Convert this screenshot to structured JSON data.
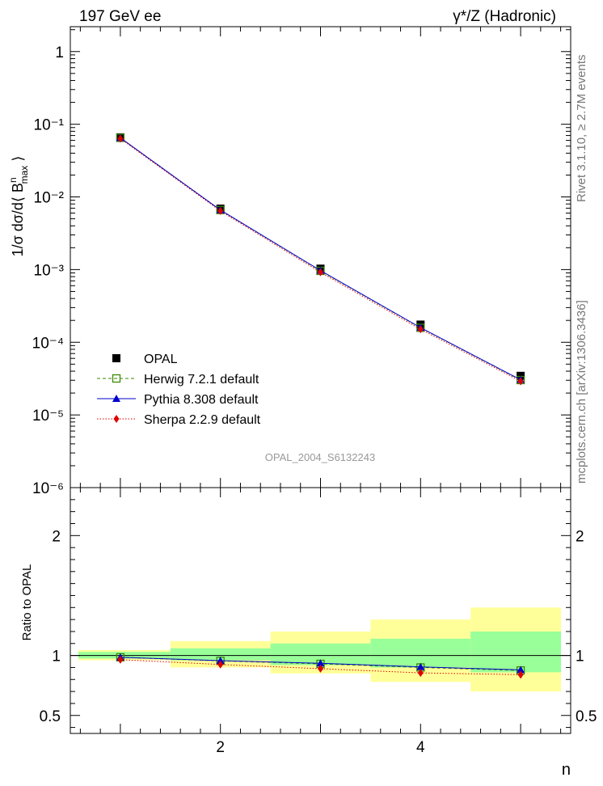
{
  "header": {
    "left_label": "197 GeV ee",
    "right_label": "γ*/Z (Hadronic)"
  },
  "side_labels": {
    "rivet": "Rivet 3.1.10, ≥ 2.7M events",
    "mcplots": "mcplots.cern.ch [arXiv:1306.3436]"
  },
  "analysis_tag": "OPAL_2004_S6132243",
  "chart_data": [
    {
      "type": "scatter",
      "role": "main",
      "ylabel": "1/σ dσ/d⟨ B^n_max ⟩",
      "yscale": "log",
      "ylim": [
        1e-06,
        2.2
      ],
      "xlim": [
        0.5,
        5.5
      ],
      "y_ticks": [
        {
          "value": 1,
          "label": "1"
        },
        {
          "value": 0.1,
          "label": "10⁻¹"
        },
        {
          "value": 0.01,
          "label": "10⁻²"
        },
        {
          "value": 0.001,
          "label": "10⁻³"
        },
        {
          "value": 0.0001,
          "label": "10⁻⁴"
        },
        {
          "value": 1e-05,
          "label": "10⁻⁵"
        },
        {
          "value": 1e-06,
          "label": "10⁻⁶"
        }
      ],
      "x": [
        1,
        2,
        3,
        4,
        5
      ],
      "series": [
        {
          "name": "OPAL",
          "marker": "square",
          "color": "#000000",
          "values": [
            0.066,
            0.0069,
            0.00103,
            0.000175,
            3.45e-05
          ]
        },
        {
          "name": "Herwig 7.2.1 default",
          "marker": "open-square",
          "line": "dashed",
          "color": "#3a8a00",
          "values": [
            0.065,
            0.0066,
            0.00096,
            0.000158,
            3.02e-05
          ]
        },
        {
          "name": "Pythia 8.308 default",
          "marker": "triangle",
          "line": "solid",
          "color": "#0000cc",
          "values": [
            0.065,
            0.0066,
            0.00097,
            0.000159,
            3.05e-05
          ]
        },
        {
          "name": "Sherpa 2.2.9 default",
          "marker": "diamond",
          "line": "dotted",
          "color": "#dd0000",
          "values": [
            0.0635,
            0.0064,
            0.00092,
            0.000151,
            2.91e-05
          ]
        }
      ],
      "legend_position": "bottom-left"
    },
    {
      "type": "scatter",
      "role": "ratio",
      "xlabel": "n",
      "ylabel": "Ratio to OPAL",
      "ylim": [
        0.35,
        2.4
      ],
      "xlim": [
        0.5,
        5.5
      ],
      "y_ticks": [
        {
          "value": 0.5,
          "label": "0.5"
        },
        {
          "value": 1,
          "label": "1"
        },
        {
          "value": 2,
          "label": "2"
        }
      ],
      "x_ticks": [
        {
          "value": 2,
          "label": "2"
        },
        {
          "value": 4,
          "label": "4"
        }
      ],
      "bands": [
        {
          "xlow": 0.5,
          "xhigh": 1.5,
          "green": [
            0.975,
            1.03
          ],
          "yellow": [
            0.96,
            1.045
          ]
        },
        {
          "xlow": 1.5,
          "xhigh": 2.5,
          "green": [
            0.96,
            1.06
          ],
          "yellow": [
            0.9,
            1.12
          ]
        },
        {
          "xlow": 2.5,
          "xhigh": 3.5,
          "green": [
            0.92,
            1.1
          ],
          "yellow": [
            0.85,
            1.2
          ]
        },
        {
          "xlow": 3.5,
          "xhigh": 4.5,
          "green": [
            0.9,
            1.14
          ],
          "yellow": [
            0.78,
            1.3
          ]
        },
        {
          "xlow": 4.5,
          "xhigh": 5.5,
          "green": [
            0.86,
            1.2
          ],
          "yellow": [
            0.7,
            1.4
          ]
        }
      ],
      "series": [
        {
          "name": "Herwig 7.2.1 default",
          "marker": "open-square",
          "line": "dashed",
          "color": "#3a8a00",
          "values": [
            0.985,
            0.955,
            0.93,
            0.9,
            0.875
          ]
        },
        {
          "name": "Pythia 8.308 default",
          "marker": "triangle",
          "line": "solid",
          "color": "#0000cc",
          "values": [
            0.985,
            0.957,
            0.935,
            0.905,
            0.88
          ]
        },
        {
          "name": "Sherpa 2.2.9 default",
          "marker": "diamond",
          "line": "dotted",
          "color": "#dd0000",
          "values": [
            0.965,
            0.925,
            0.89,
            0.855,
            0.84
          ]
        }
      ]
    }
  ]
}
